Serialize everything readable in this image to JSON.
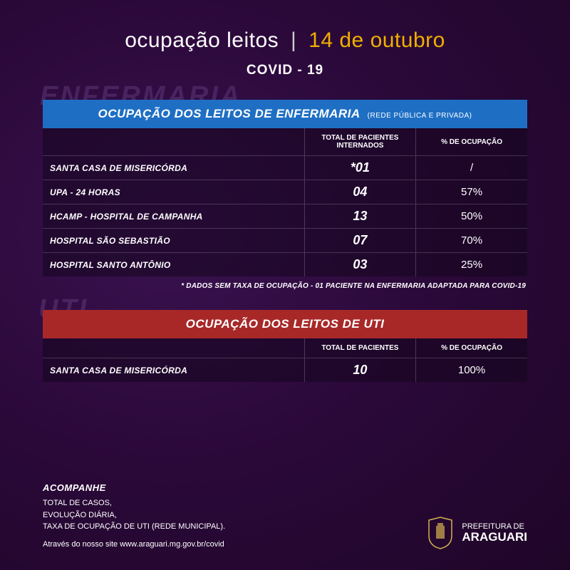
{
  "header": {
    "title": "ocupação leitos",
    "separator": "|",
    "date": "14 de outubro",
    "subtitle": "COVID - 19"
  },
  "colors": {
    "background_base": "#2d0a3d",
    "accent_date": "#f0b000",
    "section_blue": "#1e6fc4",
    "section_red": "#a82828",
    "text": "#ffffff"
  },
  "enfermaria": {
    "bg_word": "ENFERMARIA",
    "title": "OCUPAÇÃO DOS LEITOS DE ENFERMARIA",
    "title_note": "(REDE PÚBLICA E PRIVADA)",
    "columns": {
      "col2": "TOTAL DE PACIENTES INTERNADOS",
      "col3": "% DE OCUPAÇÃO"
    },
    "rows": [
      {
        "name": "SANTA CASA DE MISERICÓRDA",
        "patients": "*01",
        "occupancy": "/"
      },
      {
        "name": "UPA - 24 HORAS",
        "patients": "04",
        "occupancy": "57%"
      },
      {
        "name": "HCAMP - HOSPITAL DE CAMPANHA",
        "patients": "13",
        "occupancy": "50%"
      },
      {
        "name": "HOSPITAL SÃO SEBASTIÃO",
        "patients": "07",
        "occupancy": "70%"
      },
      {
        "name": "HOSPITAL SANTO ANTÔNIO",
        "patients": "03",
        "occupancy": "25%"
      }
    ],
    "footnote": "* DADOS SEM TAXA DE OCUPAÇÃO - 01 PACIENTE NA ENFERMARIA ADAPTADA PARA COVID-19"
  },
  "uti": {
    "bg_word": "UTI",
    "title": "OCUPAÇÃO DOS LEITOS DE UTI",
    "columns": {
      "col2": "TOTAL DE PACIENTES",
      "col3": "% DE OCUPAÇÃO"
    },
    "rows": [
      {
        "name": "SANTA CASA DE MISERICÓRDA",
        "patients": "10",
        "occupancy": "100%"
      }
    ]
  },
  "footer": {
    "head": "ACOMPANHE",
    "lines": [
      "TOTAL DE CASOS,",
      "EVOLUÇÃO DIÁRIA,",
      "TAXA DE OCUPAÇÃO DE UTI (REDE MUNICIPAL)."
    ],
    "site_prefix": "Através do nosso site ",
    "site": "www.araguari.mg.gov.br/covid",
    "pref_line1": "PREFEITURA DE",
    "pref_line2": "ARAGUARI"
  }
}
